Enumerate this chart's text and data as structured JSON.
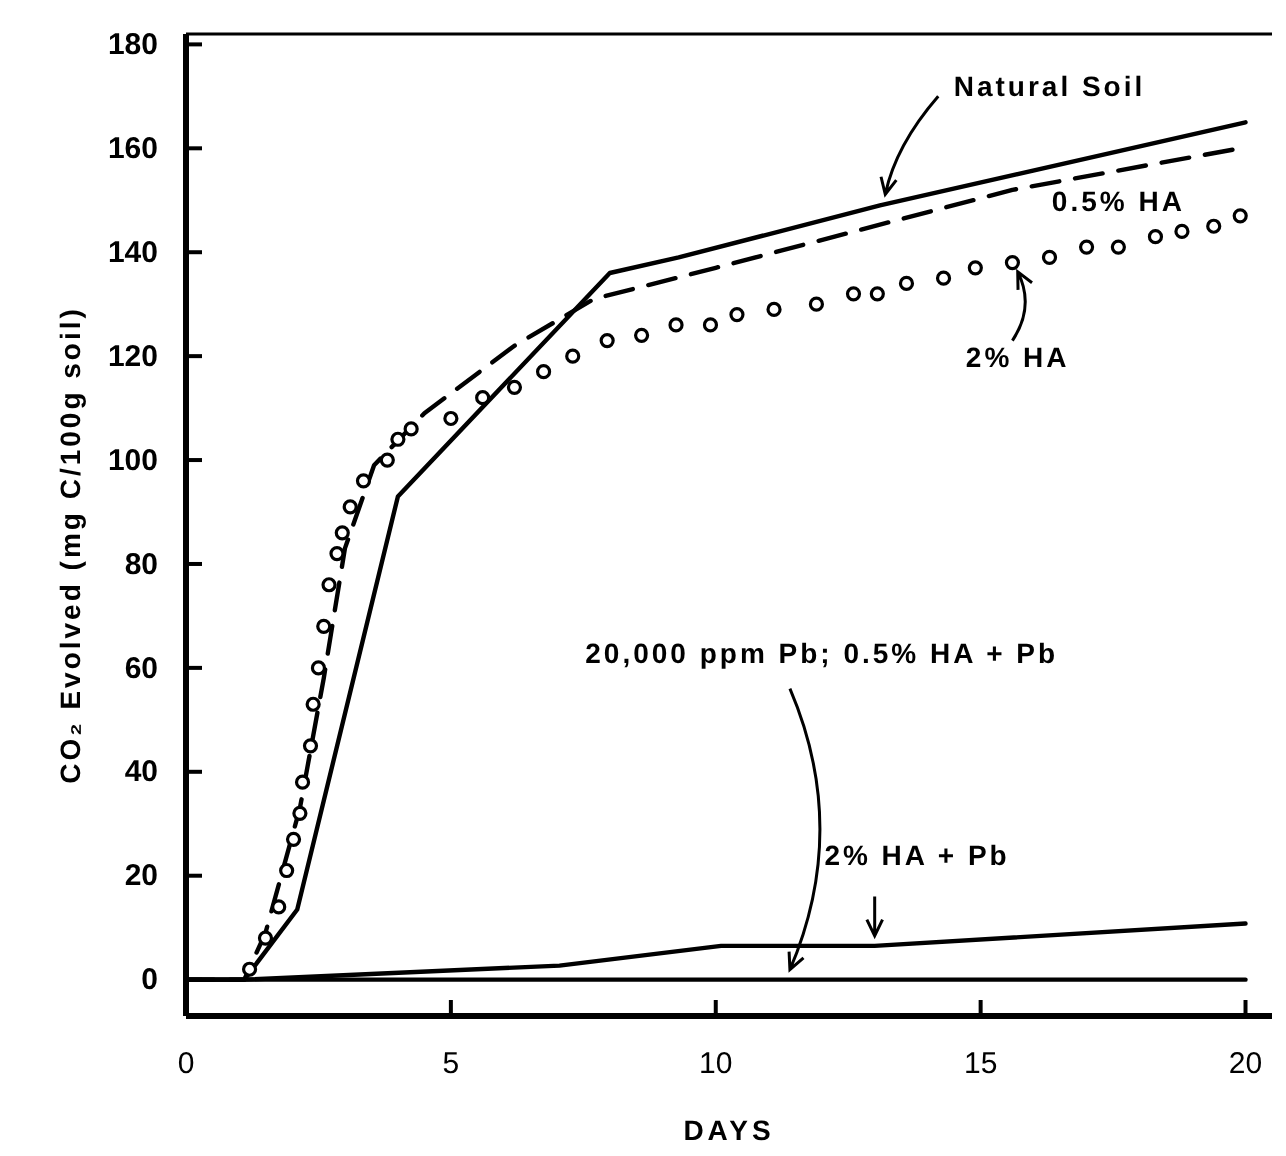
{
  "chart_data": {
    "type": "line",
    "xlabel": "DAYS",
    "ylabel": "CO₂ Evolved (mg C/100g soil)",
    "xlim": [
      0,
      20.5
    ],
    "ylim": [
      -7,
      182
    ],
    "xticks": [
      0,
      5,
      10,
      15,
      20
    ],
    "yticks": [
      0,
      20,
      40,
      60,
      80,
      100,
      120,
      140,
      160,
      180
    ],
    "grid": false,
    "series": [
      {
        "name": "Natural Soil",
        "color": "#000000",
        "line_style": "solid",
        "marker": "none",
        "x": [
          0,
          1.1,
          2.1,
          4.0,
          8.0,
          9.3,
          13.1,
          20
        ],
        "values": [
          0,
          0,
          13.5,
          93,
          136,
          139,
          149,
          165
        ]
      },
      {
        "name": "0.5% HA",
        "color": "#000000",
        "line_style": "dashed",
        "marker": "none",
        "x": [
          0,
          1.1,
          1.5,
          2.15,
          2.6,
          3.0,
          3.55,
          4.5,
          6.2,
          7.7,
          10,
          15.6,
          19.9
        ],
        "values": [
          0,
          0,
          9,
          33,
          58,
          83,
          99,
          109,
          122,
          131,
          137,
          152,
          160
        ]
      },
      {
        "name": "2% HA",
        "type": "scatter",
        "color": "#000000",
        "marker": "circle",
        "x": [
          1.2,
          1.5,
          1.75,
          1.9,
          2.03,
          2.15,
          2.2,
          2.35,
          2.4,
          2.5,
          2.6,
          2.7,
          2.85,
          2.95,
          3.1,
          3.35,
          3.8,
          4.0,
          4.25,
          5.0,
          5.6,
          6.2,
          6.75,
          7.3,
          7.95,
          8.6,
          9.25,
          9.9,
          10.4,
          11.1,
          11.9,
          12.6,
          13.05,
          13.6,
          14.3,
          14.9,
          15.6,
          16.3,
          17.0,
          17.6,
          18.3,
          18.8,
          19.4,
          19.9
        ],
        "values": [
          2,
          8,
          14,
          21,
          27,
          32,
          38,
          45,
          53,
          60,
          68,
          76,
          82,
          86,
          91,
          96,
          100,
          104,
          106,
          108,
          112,
          114,
          117,
          120,
          123,
          124,
          126,
          126,
          128,
          129,
          130,
          132,
          132,
          134,
          135,
          137,
          138,
          139,
          141,
          141,
          143,
          144,
          145,
          147
        ]
      },
      {
        "name": "20,000 ppm Pb; 0.5% HA + Pb",
        "color": "#000000",
        "line_style": "solid",
        "marker": "none",
        "x": [
          0,
          20
        ],
        "values": [
          0,
          0
        ]
      },
      {
        "name": "2% HA + Pb",
        "color": "#000000",
        "line_style": "solid",
        "marker": "none",
        "x": [
          0,
          1.1,
          7.05,
          10.1,
          13,
          20
        ],
        "values": [
          0,
          0,
          2.7,
          6.5,
          6.5,
          10.8
        ]
      }
    ]
  }
}
